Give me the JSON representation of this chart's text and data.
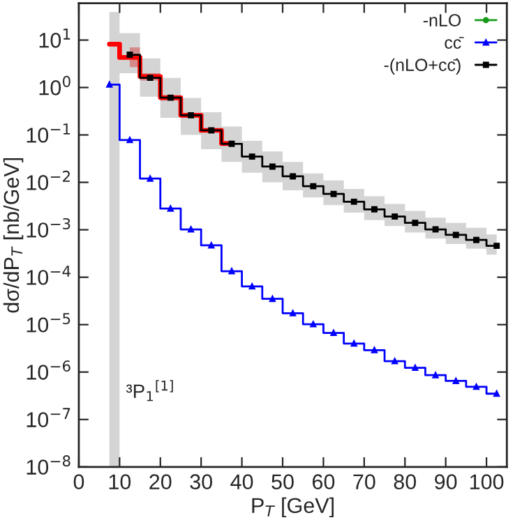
{
  "chart_data": {
    "type": "step",
    "xlabel": "P$_{T}$ [GeV]",
    "ylabel": "dσ/dP$_{T}$ [nb/GeV]",
    "xlim": [
      0,
      105
    ],
    "xticks": [
      0,
      10,
      20,
      30,
      40,
      50,
      60,
      70,
      80,
      90,
      100
    ],
    "ylim": [
      1e-08,
      60
    ],
    "log": "y",
    "yticks": [
      {
        "value": 1e-08,
        "label": "10$^{−8}$"
      },
      {
        "value": 1e-07,
        "label": "10$^{−7}$"
      },
      {
        "value": 1e-06,
        "label": "10$^{−6}$"
      },
      {
        "value": 1e-05,
        "label": "10$^{−5}$"
      },
      {
        "value": 0.0001,
        "label": "10$^{−4}$"
      },
      {
        "value": 0.001,
        "label": "10$^{−3}$"
      },
      {
        "value": 0.01,
        "label": "10$^{−2}$"
      },
      {
        "value": 0.1,
        "label": "10$^{−1}$"
      },
      {
        "value": 1,
        "label": "10$^{0}$"
      },
      {
        "value": 10,
        "label": "10$^{1}$"
      }
    ],
    "legend": "top right",
    "grid": false,
    "annotations": [
      "³P$_{1}$$^{[1]}$"
    ],
    "series": [
      {
        "color": "#ff0000",
        "marker": "none",
        "x": [
          7.5,
          12.5,
          17.5,
          22.5,
          27.5,
          32.5,
          37.5
        ],
        "values": [
          8.2,
          4.3,
          1.7,
          0.61,
          0.26,
          0.125,
          0.066
        ],
        "lower": [
          null,
          2.7,
          1.4,
          0.53,
          0.23,
          0.115,
          0.062
        ],
        "upper": [
          null,
          7,
          2.0,
          0.68,
          0.29,
          0.135,
          0.07
        ]
      },
      {
        "name": "-nLO",
        "color": "#1a9a1a",
        "marker": "circle"
      },
      {
        "name": "cc̄",
        "color": "#0000ff",
        "marker": "triangle",
        "x": [
          7.5,
          12.5,
          17.5,
          22.5,
          27.5,
          32.5,
          37.5,
          42.5,
          47.5,
          52.5,
          57.5,
          62.5,
          67.5,
          72.5,
          77.5,
          82.5,
          87.5,
          92.5,
          97.5,
          102.5
        ],
        "values": [
          1.15,
          0.078,
          0.012,
          0.0028,
          0.00102,
          0.00047,
          0.000134,
          6.4e-05,
          3.5e-05,
          1.74e-05,
          1.02e-05,
          6.7e-06,
          4e-06,
          2.9e-06,
          1.7e-06,
          1.23e-06,
          8.6e-07,
          6.5e-07,
          4.9e-07,
          3.5e-07
        ]
      },
      {
        "name": "-(nLO+cc̄)",
        "color": "#000000",
        "marker": "square",
        "x": [
          7.5,
          12.5,
          17.5,
          22.5,
          27.5,
          32.5,
          37.5,
          42.5,
          47.5,
          52.5,
          57.5,
          62.5,
          67.5,
          72.5,
          77.5,
          82.5,
          87.5,
          92.5,
          97.5,
          102.5
        ],
        "values": [
          null,
          4.9,
          1.6,
          0.61,
          0.26,
          0.125,
          0.065,
          0.035,
          0.0215,
          0.0134,
          0.0083,
          0.0057,
          0.0039,
          0.0027,
          0.0019,
          0.0014,
          0.00102,
          0.00078,
          0.00061,
          0.00046
        ],
        "lower": [
          1e-08,
          2.0,
          0.64,
          0.23,
          0.1,
          0.05,
          0.027,
          0.016,
          0.01,
          0.0068,
          0.0048,
          0.0033,
          0.0023,
          0.0016,
          0.0012,
          0.00088,
          0.00065,
          0.0005,
          0.0004,
          0.0003
        ],
        "upper": [
          39,
          14,
          4.1,
          1.6,
          0.6,
          0.3,
          0.15,
          0.075,
          0.045,
          0.027,
          0.0155,
          0.011,
          0.0073,
          0.0051,
          0.0035,
          0.0025,
          0.0018,
          0.0014,
          0.0011,
          0.0008
        ]
      }
    ]
  }
}
